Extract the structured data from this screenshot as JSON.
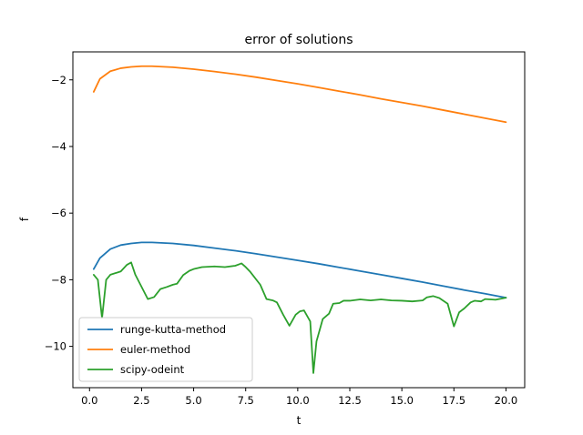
{
  "chart_data": {
    "type": "line",
    "title": "error of solutions",
    "xlabel": "t",
    "ylabel": "f",
    "xlim": [
      -0.8,
      20.9
    ],
    "ylim": [
      -11.24,
      -1.16
    ],
    "x_ticks": [
      0.0,
      2.5,
      5.0,
      7.5,
      10.0,
      12.5,
      15.0,
      17.5,
      20.0
    ],
    "x_tick_labels": [
      "0.0",
      "2.5",
      "5.0",
      "7.5",
      "10.0",
      "12.5",
      "15.0",
      "17.5",
      "20.0"
    ],
    "y_ticks": [
      -10,
      -8,
      -6,
      -4,
      -2
    ],
    "y_tick_labels": [
      "−10",
      "−8",
      "−6",
      "−4",
      "−2"
    ],
    "grid": false,
    "legend_position": "lower-left",
    "series": [
      {
        "name": "runge-kutta-method",
        "color": "#1f77b4",
        "x": [
          0.2,
          0.5,
          1.0,
          1.5,
          2.0,
          2.5,
          3.0,
          4.0,
          5.0,
          6.0,
          7.0,
          8.0,
          9.0,
          10.0,
          11.0,
          12.0,
          13.0,
          14.0,
          15.0,
          16.0,
          17.0,
          18.0,
          19.0,
          20.0
        ],
        "y": [
          -7.68,
          -7.35,
          -7.08,
          -6.96,
          -6.91,
          -6.88,
          -6.88,
          -6.91,
          -6.97,
          -7.05,
          -7.13,
          -7.22,
          -7.32,
          -7.42,
          -7.52,
          -7.63,
          -7.74,
          -7.85,
          -7.96,
          -8.07,
          -8.19,
          -8.31,
          -8.42,
          -8.54
        ]
      },
      {
        "name": "euler-method",
        "color": "#ff7f0e",
        "x": [
          0.2,
          0.5,
          1.0,
          1.5,
          2.0,
          2.5,
          3.0,
          4.0,
          5.0,
          6.0,
          7.0,
          8.0,
          9.0,
          10.0,
          11.0,
          12.0,
          13.0,
          14.0,
          15.0,
          16.0,
          17.0,
          18.0,
          19.0,
          20.0
        ],
        "y": [
          -2.36,
          -1.97,
          -1.74,
          -1.65,
          -1.61,
          -1.59,
          -1.59,
          -1.62,
          -1.68,
          -1.75,
          -1.83,
          -1.92,
          -2.02,
          -2.12,
          -2.23,
          -2.34,
          -2.45,
          -2.57,
          -2.68,
          -2.79,
          -2.91,
          -3.03,
          -3.15,
          -3.27
        ]
      },
      {
        "name": "scipy-odeint",
        "color": "#2ca02c",
        "x": [
          0.2,
          0.4,
          0.6,
          0.8,
          1.0,
          1.5,
          1.8,
          2.0,
          2.2,
          2.8,
          3.1,
          3.4,
          3.7,
          4.0,
          4.2,
          4.5,
          4.8,
          5.0,
          5.4,
          6.0,
          6.5,
          7.0,
          7.3,
          7.5,
          7.7,
          8.2,
          8.5,
          8.8,
          9.0,
          9.3,
          9.6,
          9.9,
          10.1,
          10.3,
          10.6,
          10.75,
          10.9,
          11.2,
          11.5,
          11.7,
          12.0,
          12.2,
          12.5,
          13.0,
          13.5,
          14.0,
          14.5,
          15.0,
          15.5,
          16.0,
          16.2,
          16.5,
          16.8,
          17.2,
          17.5,
          17.75,
          18.0,
          18.3,
          18.5,
          18.8,
          19.0,
          19.5,
          20.0
        ],
        "y": [
          -7.85,
          -8.0,
          -9.15,
          -8.0,
          -7.85,
          -7.75,
          -7.55,
          -7.48,
          -7.85,
          -8.58,
          -8.52,
          -8.28,
          -8.22,
          -8.15,
          -8.12,
          -7.86,
          -7.73,
          -7.68,
          -7.62,
          -7.6,
          -7.62,
          -7.58,
          -7.51,
          -7.62,
          -7.75,
          -8.15,
          -8.58,
          -8.62,
          -8.68,
          -9.05,
          -9.38,
          -9.05,
          -8.95,
          -8.92,
          -9.25,
          -10.8,
          -9.85,
          -9.18,
          -9.02,
          -8.72,
          -8.7,
          -8.63,
          -8.63,
          -8.59,
          -8.62,
          -8.59,
          -8.62,
          -8.63,
          -8.65,
          -8.62,
          -8.53,
          -8.49,
          -8.55,
          -8.72,
          -9.4,
          -8.98,
          -8.86,
          -8.68,
          -8.63,
          -8.65,
          -8.58,
          -8.6,
          -8.54
        ]
      }
    ]
  }
}
